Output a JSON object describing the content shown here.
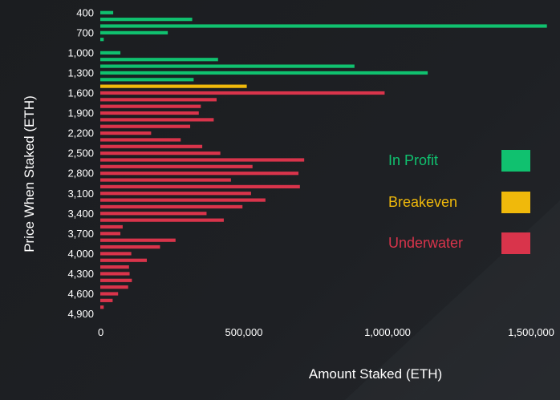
{
  "chart_data": {
    "type": "bar",
    "orientation": "horizontal",
    "title": "",
    "xlabel": "Amount Staked (ETH)",
    "ylabel": "Price When Staked (ETH)",
    "xlim": [
      0,
      1500000
    ],
    "xticks": [
      0,
      500000,
      1000000,
      1500000
    ],
    "xtick_labels": [
      "0",
      "500,000",
      "1,000,000",
      "1,500,000"
    ],
    "ytick_labels": [
      "400",
      "700",
      "1,000",
      "1,300",
      "1,600",
      "1,900",
      "2,200",
      "2,500",
      "2,800",
      "3,100",
      "3,400",
      "3,700",
      "4,000",
      "4,300",
      "4,600",
      "4,900"
    ],
    "grid": false,
    "legend_position": "right",
    "legend": [
      {
        "name": "In Profit",
        "color": "#10c16f"
      },
      {
        "name": "Breakeven",
        "color": "#f0b90b"
      },
      {
        "name": "Underwater",
        "color": "#d9344b"
      }
    ],
    "bins": [
      {
        "price": 400,
        "value": 45000,
        "status": "In Profit"
      },
      {
        "price": 500,
        "value": 320000,
        "status": "In Profit"
      },
      {
        "price": 600,
        "value": 1555000,
        "status": "In Profit"
      },
      {
        "price": 700,
        "value": 235000,
        "status": "In Profit"
      },
      {
        "price": 800,
        "value": 12000,
        "status": "In Profit"
      },
      {
        "price": 1000,
        "value": 70000,
        "status": "In Profit"
      },
      {
        "price": 1100,
        "value": 410000,
        "status": "In Profit"
      },
      {
        "price": 1200,
        "value": 885000,
        "status": "In Profit"
      },
      {
        "price": 1300,
        "value": 1140000,
        "status": "In Profit"
      },
      {
        "price": 1400,
        "value": 325000,
        "status": "In Profit"
      },
      {
        "price": 1500,
        "value": 510000,
        "status": "Breakeven"
      },
      {
        "price": 1600,
        "value": 990000,
        "status": "Underwater"
      },
      {
        "price": 1700,
        "value": 405000,
        "status": "Underwater"
      },
      {
        "price": 1800,
        "value": 350000,
        "status": "Underwater"
      },
      {
        "price": 1900,
        "value": 343000,
        "status": "Underwater"
      },
      {
        "price": 2000,
        "value": 395000,
        "status": "Underwater"
      },
      {
        "price": 2100,
        "value": 313000,
        "status": "Underwater"
      },
      {
        "price": 2200,
        "value": 177000,
        "status": "Underwater"
      },
      {
        "price": 2300,
        "value": 280000,
        "status": "Underwater"
      },
      {
        "price": 2400,
        "value": 355000,
        "status": "Underwater"
      },
      {
        "price": 2500,
        "value": 418000,
        "status": "Underwater"
      },
      {
        "price": 2600,
        "value": 710000,
        "status": "Underwater"
      },
      {
        "price": 2700,
        "value": 530000,
        "status": "Underwater"
      },
      {
        "price": 2800,
        "value": 690000,
        "status": "Underwater"
      },
      {
        "price": 2900,
        "value": 455000,
        "status": "Underwater"
      },
      {
        "price": 3000,
        "value": 695000,
        "status": "Underwater"
      },
      {
        "price": 3100,
        "value": 525000,
        "status": "Underwater"
      },
      {
        "price": 3200,
        "value": 575000,
        "status": "Underwater"
      },
      {
        "price": 3300,
        "value": 495000,
        "status": "Underwater"
      },
      {
        "price": 3400,
        "value": 370000,
        "status": "Underwater"
      },
      {
        "price": 3500,
        "value": 430000,
        "status": "Underwater"
      },
      {
        "price": 3600,
        "value": 78000,
        "status": "Underwater"
      },
      {
        "price": 3700,
        "value": 70000,
        "status": "Underwater"
      },
      {
        "price": 3800,
        "value": 262000,
        "status": "Underwater"
      },
      {
        "price": 3900,
        "value": 208000,
        "status": "Underwater"
      },
      {
        "price": 4000,
        "value": 108000,
        "status": "Underwater"
      },
      {
        "price": 4100,
        "value": 162000,
        "status": "Underwater"
      },
      {
        "price": 4200,
        "value": 100000,
        "status": "Underwater"
      },
      {
        "price": 4300,
        "value": 102000,
        "status": "Underwater"
      },
      {
        "price": 4400,
        "value": 110000,
        "status": "Underwater"
      },
      {
        "price": 4500,
        "value": 97000,
        "status": "Underwater"
      },
      {
        "price": 4600,
        "value": 62000,
        "status": "Underwater"
      },
      {
        "price": 4700,
        "value": 43000,
        "status": "Underwater"
      },
      {
        "price": 4800,
        "value": 12000,
        "status": "Underwater"
      }
    ]
  }
}
